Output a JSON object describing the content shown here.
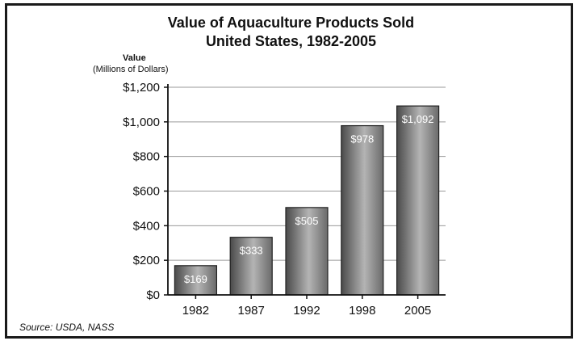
{
  "chart_data": {
    "type": "bar",
    "title": "Value of Aquaculture Products Sold",
    "subtitle": "United States, 1982-2005",
    "ylabel": "Value",
    "ylabel_unit": "(Millions of Dollars)",
    "xlabel": "",
    "categories": [
      "1982",
      "1987",
      "1992",
      "1998",
      "2005"
    ],
    "values": [
      169,
      333,
      505,
      978,
      1092
    ],
    "value_labels": [
      "$169",
      "$333",
      "$505",
      "$978",
      "$1,092"
    ],
    "ylim": [
      0,
      1200
    ],
    "yticks": [
      0,
      200,
      400,
      600,
      800,
      1000,
      1200
    ],
    "ytick_labels": [
      "$0",
      "$200",
      "$400",
      "$600",
      "$800",
      "$1,000",
      "$1,200"
    ],
    "grid": true,
    "bar_color": "#8a8a8a",
    "source": "Source: USDA, NASS"
  }
}
